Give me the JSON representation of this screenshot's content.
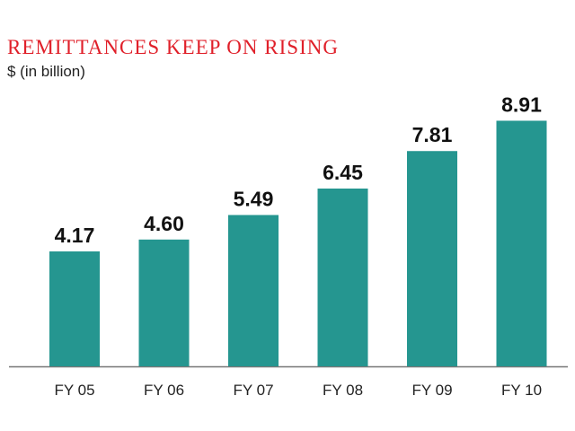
{
  "colors": {
    "title": "#e0202a",
    "bar": "#259690",
    "baseline": "#777777"
  },
  "chart_data": {
    "type": "bar",
    "title": "REMITTANCES KEEP ON RISING",
    "subtitle": "$ (in billion)",
    "xlabel": "",
    "ylabel": "",
    "categories": [
      "FY 05",
      "FY 06",
      "FY 07",
      "FY 08",
      "FY 09",
      "FY 10"
    ],
    "values": [
      4.17,
      4.6,
      5.49,
      6.45,
      7.81,
      8.91
    ],
    "value_labels": [
      "4.17",
      "4.60",
      "5.49",
      "6.45",
      "7.81",
      "8.91"
    ],
    "ylim": [
      0,
      10
    ],
    "grid": false,
    "legend": "none"
  }
}
